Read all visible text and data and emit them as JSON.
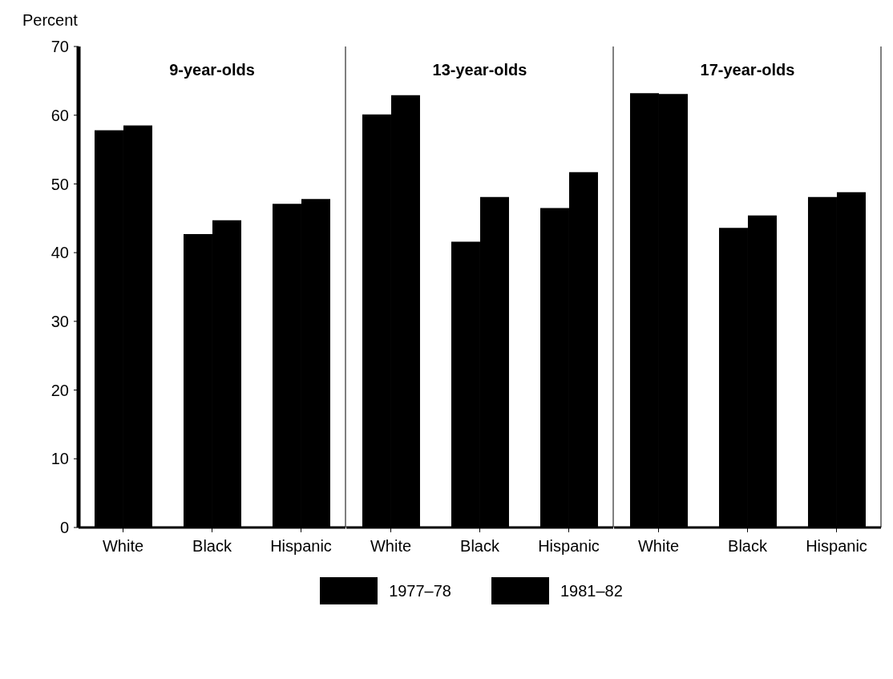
{
  "chart_data": [
    {
      "type": "bar",
      "title": "9-year-olds",
      "ylabel": "Percent",
      "categories": [
        "White",
        "Black",
        "Hispanic"
      ],
      "series": [
        {
          "name": "1977–78",
          "color": "#000000",
          "values": [
            57.8,
            42.7,
            47.1
          ]
        },
        {
          "name": "1981–82",
          "color": "#000000",
          "values": [
            58.5,
            44.7,
            47.8
          ]
        }
      ],
      "ylim": [
        0,
        70
      ],
      "yticks": [
        0,
        10,
        20,
        30,
        40,
        50,
        60,
        70
      ],
      "legend": "bottom",
      "grid": false
    },
    {
      "type": "bar",
      "title": "13-year-olds",
      "categories": [
        "White",
        "Black",
        "Hispanic"
      ],
      "series": [
        {
          "color": "#000000",
          "values": [
            60.1,
            41.6,
            46.5
          ]
        },
        {
          "color": "#000000",
          "values": [
            62.9,
            48.1,
            51.7
          ]
        }
      ],
      "ylim": [
        0,
        70
      ],
      "tick_labels": "x",
      "grid": false
    },
    {
      "type": "bar",
      "title": "17-year-olds",
      "categories": [
        "White",
        "Black",
        "Hispanic"
      ],
      "series": [
        {
          "color": "#000000",
          "values": [
            63.2,
            43.6,
            48.1
          ]
        },
        {
          "color": "#000000",
          "values": [
            63.1,
            45.4,
            48.8
          ]
        }
      ],
      "ylim": [
        0,
        70
      ],
      "tick_labels": "x",
      "grid": false
    }
  ]
}
